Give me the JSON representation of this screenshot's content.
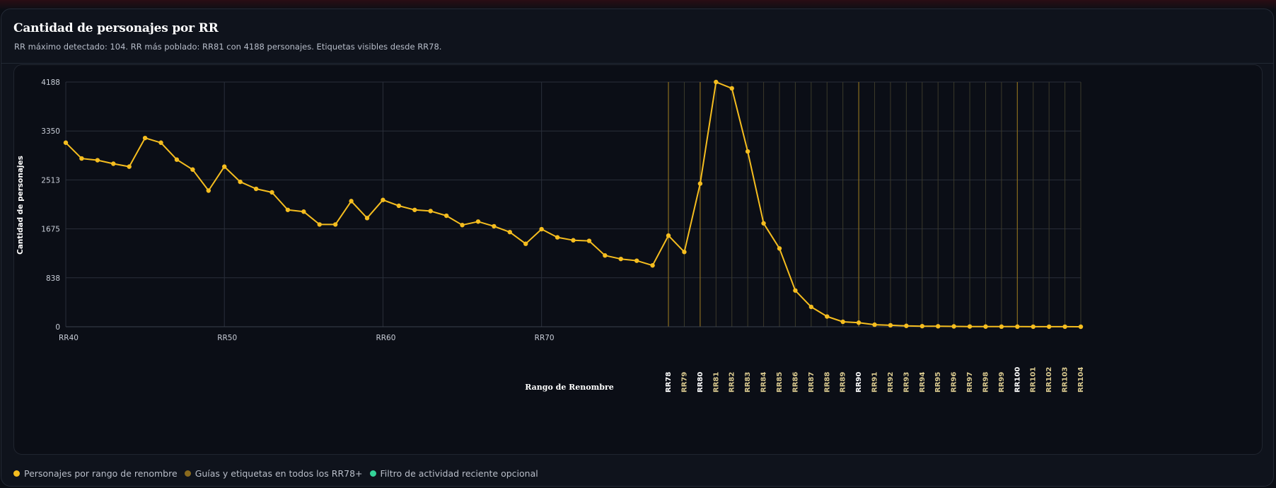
{
  "header": {
    "title": "Cantidad de personajes por RR",
    "subtitle": "RR máximo detectado: 104. RR más poblado: RR81 con 4188 personajes. Etiquetas visibles desde RR78."
  },
  "legend": [
    {
      "label": "Personajes por rango de renombre",
      "color": "#f5bd1f"
    },
    {
      "label": "Guías y etiquetas en todos los RR78+",
      "color": "#8a6a1d"
    },
    {
      "label": "Filtro de actividad reciente opcional",
      "color": "#34d399"
    }
  ],
  "colors": {
    "line": "#f5bd1f",
    "guide": "#7a6420",
    "grid": "#2a2f3a",
    "axis_text": "#c9ced8"
  },
  "chart_data": {
    "type": "line",
    "title": "Cantidad de personajes por RR",
    "xlabel": "Rango de Renombre",
    "ylabel": "Cantidad de personajes",
    "ylim": [
      0,
      4188
    ],
    "y_ticks": [
      0,
      838,
      1675,
      2513,
      3350,
      4188
    ],
    "x_range": [
      40,
      104
    ],
    "x_ticks_main": [
      "RR40",
      "RR50",
      "RR60",
      "RR70"
    ],
    "x_ticks_rotated": [
      "RR78",
      "RR79",
      "RR80",
      "RR81",
      "RR82",
      "RR83",
      "RR84",
      "RR85",
      "RR86",
      "RR87",
      "RR88",
      "RR89",
      "RR90",
      "RR91",
      "RR92",
      "RR93",
      "RR94",
      "RR95",
      "RR96",
      "RR97",
      "RR98",
      "RR99",
      "RR100",
      "RR101",
      "RR102",
      "RR103",
      "RR104"
    ],
    "x_ticks_highlighted": [
      "RR78",
      "RR80",
      "RR90",
      "RR100"
    ],
    "grid": true,
    "series": [
      {
        "name": "Personajes por rango de renombre",
        "x": [
          40,
          41,
          42,
          43,
          44,
          45,
          46,
          47,
          48,
          49,
          50,
          51,
          52,
          53,
          54,
          55,
          56,
          57,
          58,
          59,
          60,
          61,
          62,
          63,
          64,
          65,
          66,
          67,
          68,
          69,
          70,
          71,
          72,
          73,
          74,
          75,
          76,
          77,
          78,
          79,
          80,
          81,
          82,
          83,
          84,
          85,
          86,
          87,
          88,
          89,
          90,
          91,
          92,
          93,
          94,
          95,
          96,
          97,
          98,
          99,
          100,
          101,
          102,
          103,
          104
        ],
        "y": [
          3150,
          2880,
          2850,
          2790,
          2740,
          3230,
          3150,
          2860,
          2690,
          2330,
          2740,
          2480,
          2360,
          2300,
          2000,
          1970,
          1750,
          1750,
          2150,
          1860,
          2170,
          2070,
          2000,
          1980,
          1900,
          1740,
          1800,
          1720,
          1620,
          1420,
          1670,
          1530,
          1480,
          1470,
          1220,
          1160,
          1130,
          1050,
          1560,
          1280,
          2450,
          4188,
          4080,
          3000,
          1770,
          1340,
          620,
          340,
          175,
          85,
          70,
          35,
          25,
          15,
          10,
          8,
          6,
          4,
          3,
          2,
          2,
          1,
          1,
          1,
          0
        ]
      }
    ]
  }
}
